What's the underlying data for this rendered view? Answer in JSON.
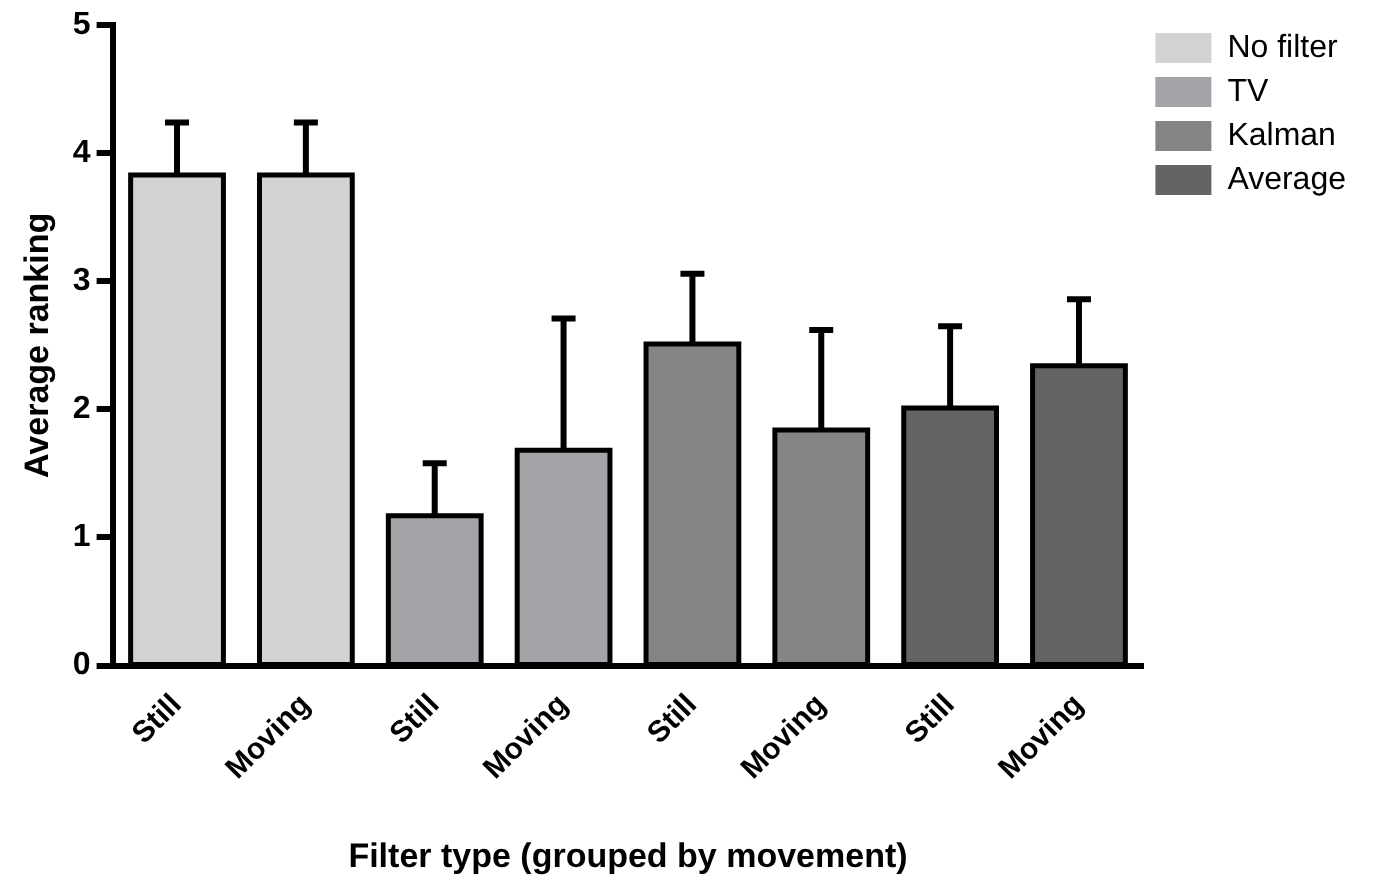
{
  "chart_data": {
    "type": "bar",
    "xlabel": "Filter type (grouped by movement)",
    "ylabel": "Average ranking",
    "categories": [
      "Still",
      "Moving",
      "Still",
      "Moving",
      "Still",
      "Moving",
      "Still",
      "Moving"
    ],
    "series": [
      {
        "name": "No filter",
        "color": "#d3d3d3",
        "values": [
          3.83,
          3.83,
          null,
          null,
          null,
          null,
          null,
          null
        ],
        "errors": [
          [
            3.83,
            4.24
          ],
          [
            3.83,
            4.24
          ],
          null,
          null,
          null,
          null,
          null,
          null
        ]
      },
      {
        "name": "TV",
        "color": "#a3a3a8",
        "values": [
          null,
          null,
          1.17,
          1.68,
          null,
          null,
          null,
          null
        ],
        "errors": [
          null,
          null,
          [
            1.17,
            1.58
          ],
          [
            1.68,
            2.71
          ],
          null,
          null,
          null,
          null
        ]
      },
      {
        "name": "Kalman",
        "color": "#858585",
        "values": [
          null,
          null,
          null,
          null,
          2.51,
          1.84,
          null,
          null
        ],
        "errors": [
          null,
          null,
          null,
          null,
          [
            2.51,
            3.06
          ],
          [
            1.84,
            2.62
          ],
          null,
          null
        ]
      },
      {
        "name": "Average",
        "color": "#636363",
        "values": [
          null,
          null,
          null,
          null,
          null,
          null,
          2.01,
          2.34
        ],
        "errors": [
          null,
          null,
          null,
          null,
          null,
          null,
          [
            2.01,
            2.65
          ],
          [
            2.34,
            2.86
          ]
        ]
      }
    ],
    "ylim": [
      0,
      5
    ],
    "yticks": [
      0,
      1,
      2,
      3,
      4,
      5
    ],
    "grid": false,
    "legend": "top right"
  }
}
